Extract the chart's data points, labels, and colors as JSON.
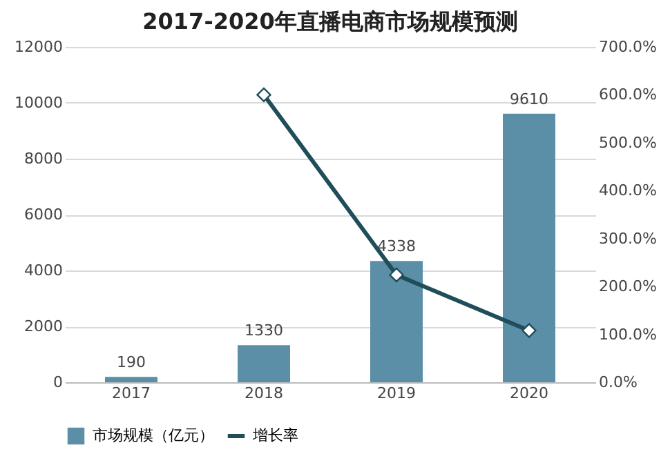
{
  "chart_data": {
    "type": "bar",
    "title": "2017-2020年直播电商市场规模预测",
    "categories": [
      "2017",
      "2018",
      "2019",
      "2020"
    ],
    "series": [
      {
        "name": "市场规模（亿元）",
        "color": "#5b8fa8",
        "values": [
          190,
          1330,
          4338,
          9610
        ],
        "value_labels": [
          "190",
          "1330",
          "4338",
          "9610"
        ]
      },
      {
        "name": "增长率",
        "type": "line",
        "axis": "y2",
        "color": "#1f4e5a",
        "values": [
          null,
          600,
          224,
          108
        ],
        "marker": "diamond"
      }
    ],
    "ylim": [
      0,
      12000
    ],
    "yticks": [
      0,
      2000,
      4000,
      6000,
      8000,
      10000,
      12000
    ],
    "y2lim": [
      0,
      700
    ],
    "y2ticks": [
      {
        "value": 0,
        "label": "0.0%"
      },
      {
        "value": 100,
        "label": "100.0%"
      },
      {
        "value": 200,
        "label": "200.0%"
      },
      {
        "value": 300,
        "label": "300.0%"
      },
      {
        "value": 400,
        "label": "400.0%"
      },
      {
        "value": 500,
        "label": "500.0%"
      },
      {
        "value": 600,
        "label": "600.0%"
      },
      {
        "value": 700,
        "label": "700.0%"
      }
    ],
    "grid": "y",
    "legend": "bottom"
  }
}
